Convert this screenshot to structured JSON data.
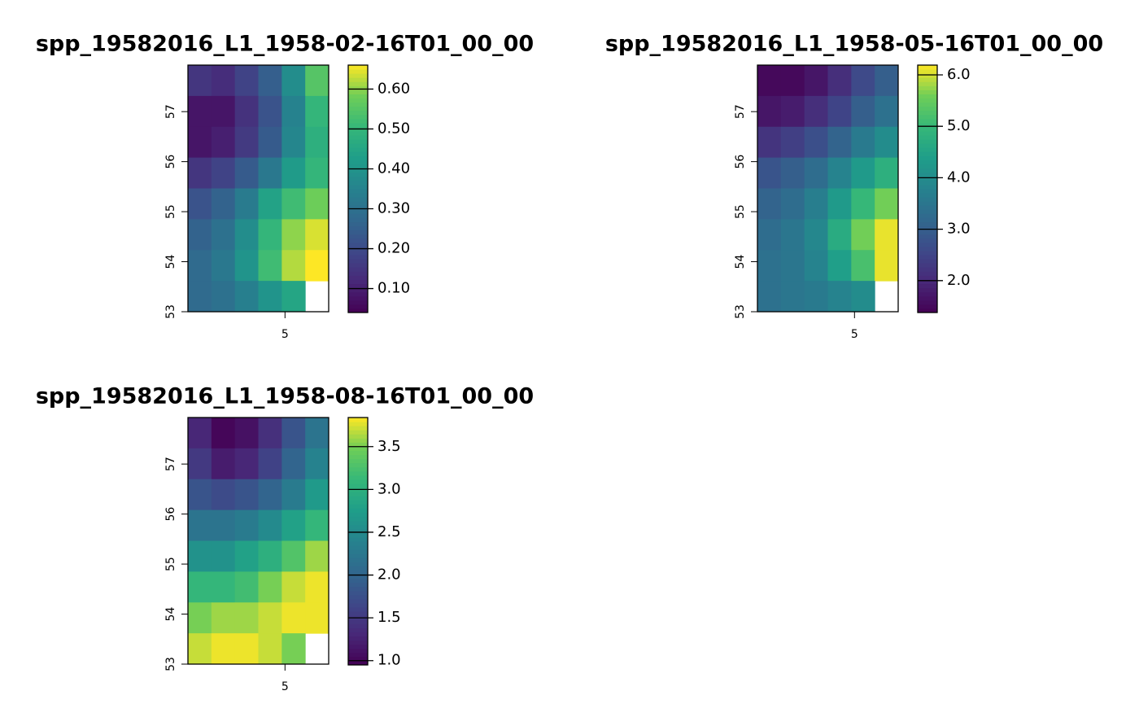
{
  "chart_data": [
    {
      "type": "heatmap",
      "title": "spp_19582016_L1_1958-02-16T01_00_00",
      "colormap": "viridis",
      "xlim": [
        3.0,
        5.9
      ],
      "xticks": [
        5
      ],
      "ylim": [
        53,
        57.93
      ],
      "yticks": [
        53,
        54,
        55,
        56,
        57
      ],
      "zlim": [
        0.04,
        0.66
      ],
      "zticks": [
        {
          "value": 0.1,
          "label": "0.10"
        },
        {
          "value": 0.2,
          "label": "0.20"
        },
        {
          "value": 0.3,
          "label": "0.30"
        },
        {
          "value": 0.4,
          "label": "0.40"
        },
        {
          "value": 0.5,
          "label": "0.50"
        },
        {
          "value": 0.6,
          "label": "0.60"
        }
      ],
      "z": [
        [
          0.15,
          0.13,
          0.18,
          0.25,
          0.38,
          0.55
        ],
        [
          0.08,
          0.08,
          0.14,
          0.22,
          0.35,
          0.5
        ],
        [
          0.08,
          0.1,
          0.16,
          0.24,
          0.36,
          0.48
        ],
        [
          0.15,
          0.18,
          0.24,
          0.32,
          0.42,
          0.5
        ],
        [
          0.22,
          0.26,
          0.33,
          0.44,
          0.52,
          0.58
        ],
        [
          0.26,
          0.3,
          0.38,
          0.5,
          0.6,
          0.64
        ],
        [
          0.28,
          0.32,
          0.4,
          0.52,
          0.62,
          0.66
        ],
        [
          0.28,
          0.3,
          0.34,
          0.4,
          0.45,
          null
        ]
      ]
    },
    {
      "type": "heatmap",
      "title": "spp_19582016_L1_1958-05-16T01_00_00",
      "colormap": "viridis",
      "xlim": [
        3.0,
        5.9
      ],
      "xticks": [
        5
      ],
      "ylim": [
        53,
        57.93
      ],
      "yticks": [
        53,
        54,
        55,
        56,
        57
      ],
      "zlim": [
        1.38,
        6.19
      ],
      "zticks": [
        {
          "value": 2,
          "label": "2.0"
        },
        {
          "value": 3,
          "label": "3.0"
        },
        {
          "value": 4,
          "label": "4.0"
        },
        {
          "value": 5,
          "label": "5.0"
        },
        {
          "value": 6,
          "label": "6.0"
        }
      ],
      "z": [
        [
          1.5,
          1.5,
          1.7,
          2.1,
          2.6,
          3.0
        ],
        [
          1.7,
          1.8,
          2.1,
          2.5,
          3.0,
          3.4
        ],
        [
          2.2,
          2.4,
          2.7,
          3.1,
          3.6,
          4.0
        ],
        [
          2.8,
          3.0,
          3.3,
          3.8,
          4.3,
          4.8
        ],
        [
          3.1,
          3.3,
          3.7,
          4.3,
          5.0,
          5.6
        ],
        [
          3.3,
          3.5,
          3.9,
          4.7,
          5.6,
          6.1
        ],
        [
          3.4,
          3.5,
          3.8,
          4.4,
          5.2,
          6.1
        ],
        [
          3.4,
          3.5,
          3.6,
          3.8,
          4.0,
          null
        ]
      ]
    },
    {
      "type": "heatmap",
      "title": "spp_19582016_L1_1958-08-16T01_00_00",
      "colormap": "viridis",
      "xlim": [
        3.0,
        5.9
      ],
      "xticks": [
        5
      ],
      "ylim": [
        53,
        57.93
      ],
      "yticks": [
        53,
        54,
        55,
        56,
        57
      ],
      "zlim": [
        0.95,
        3.84
      ],
      "zticks": [
        {
          "value": 1,
          "label": "1.0"
        },
        1.5,
        {
          "value": 2,
          "label": "2.0"
        },
        2.5,
        {
          "value": 3,
          "label": "3.0"
        },
        3.5
      ],
      "z": [
        [
          1.3,
          1.0,
          1.1,
          1.4,
          1.8,
          2.2
        ],
        [
          1.5,
          1.2,
          1.3,
          1.6,
          2.0,
          2.4
        ],
        [
          1.8,
          1.7,
          1.8,
          2.0,
          2.3,
          2.7
        ],
        [
          2.2,
          2.2,
          2.3,
          2.5,
          2.8,
          3.1
        ],
        [
          2.6,
          2.6,
          2.8,
          3.0,
          3.3,
          3.6
        ],
        [
          3.1,
          3.1,
          3.2,
          3.5,
          3.7,
          3.8
        ],
        [
          3.5,
          3.6,
          3.6,
          3.7,
          3.8,
          3.8
        ],
        [
          3.7,
          3.8,
          3.8,
          3.7,
          3.5,
          null
        ]
      ]
    }
  ]
}
